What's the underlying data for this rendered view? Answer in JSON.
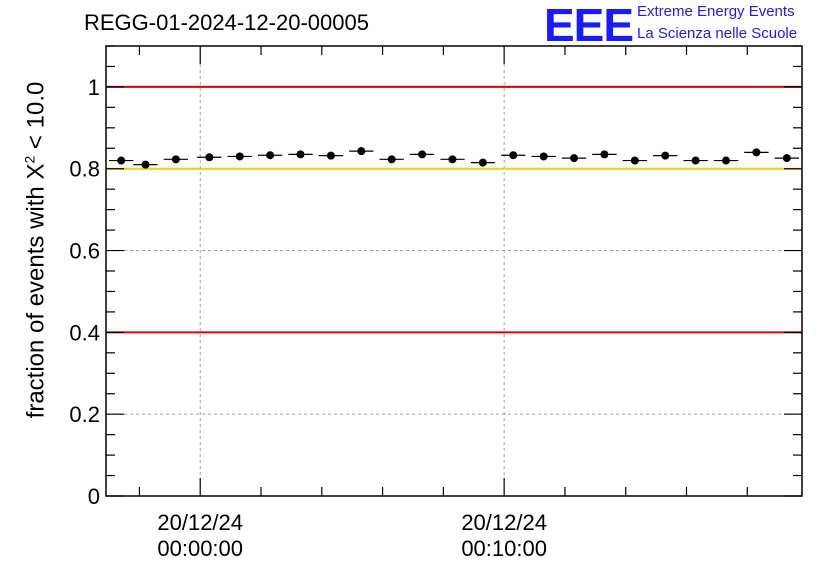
{
  "header": {
    "title": "REGG-01-2024-12-20-00005",
    "logo_text": "EEE",
    "logo_line1": "Extreme Energy Events",
    "logo_line2": "La Scienza nelle Scuole"
  },
  "chart_data": {
    "type": "scatter",
    "title": "REGG-01-2024-12-20-00005",
    "ylabel_prefix": "fraction of events with",
    "ylabel_symbol": "X",
    "ylabel_exponent": "2",
    "ylabel_suffix": "< 10.0",
    "xlabel": "",
    "ylim": [
      0,
      1.1
    ],
    "xlim_minutes": [
      -3.1,
      19.8
    ],
    "grid": true,
    "x_ticks": [
      {
        "minutes": 0,
        "date": "20/12/24",
        "time": "00:00:00"
      },
      {
        "minutes": 10,
        "date": "20/12/24",
        "time": "00:10:00"
      }
    ],
    "y_ticks": [
      {
        "value": 0,
        "label": "0"
      },
      {
        "value": 0.2,
        "label": "0.2"
      },
      {
        "value": 0.4,
        "label": "0.4"
      },
      {
        "value": 0.6,
        "label": "0.6"
      },
      {
        "value": 0.8,
        "label": "0.8"
      },
      {
        "value": 1,
        "label": "1"
      }
    ],
    "reference_lines": [
      {
        "value": 1.0,
        "color": "#e00000"
      },
      {
        "value": 0.8,
        "color": "#ffcc00"
      },
      {
        "value": 0.4,
        "color": "#e00000"
      }
    ],
    "bin_width_minutes": 0.8,
    "points": [
      {
        "x": -2.6,
        "y": 0.82
      },
      {
        "x": -1.8,
        "y": 0.81
      },
      {
        "x": -0.8,
        "y": 0.823
      },
      {
        "x": 0.3,
        "y": 0.828
      },
      {
        "x": 1.3,
        "y": 0.83
      },
      {
        "x": 2.3,
        "y": 0.833
      },
      {
        "x": 3.3,
        "y": 0.835
      },
      {
        "x": 4.3,
        "y": 0.832
      },
      {
        "x": 5.3,
        "y": 0.843
      },
      {
        "x": 6.3,
        "y": 0.823
      },
      {
        "x": 7.3,
        "y": 0.835
      },
      {
        "x": 8.3,
        "y": 0.823
      },
      {
        "x": 9.3,
        "y": 0.815
      },
      {
        "x": 10.3,
        "y": 0.833
      },
      {
        "x": 11.3,
        "y": 0.83
      },
      {
        "x": 12.3,
        "y": 0.826
      },
      {
        "x": 13.3,
        "y": 0.835
      },
      {
        "x": 14.3,
        "y": 0.82
      },
      {
        "x": 15.3,
        "y": 0.832
      },
      {
        "x": 16.3,
        "y": 0.82
      },
      {
        "x": 17.3,
        "y": 0.82
      },
      {
        "x": 18.3,
        "y": 0.84
      },
      {
        "x": 19.3,
        "y": 0.826
      }
    ]
  }
}
